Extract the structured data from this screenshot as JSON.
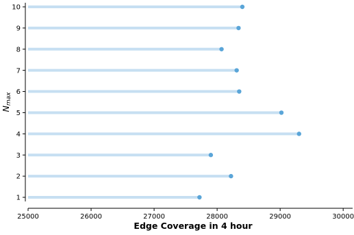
{
  "chart_data": {
    "type": "lollipop",
    "title": "",
    "xlabel": "Edge Coverage in 4 hour",
    "ylabel_main": "N",
    "ylabel_sub": "max",
    "categories": [
      "1",
      "2",
      "3",
      "4",
      "5",
      "6",
      "7",
      "8",
      "9",
      "10"
    ],
    "values": [
      27720,
      28220,
      27900,
      29300,
      29020,
      28350,
      28310,
      28070,
      28340,
      28400
    ],
    "baseline": 25000,
    "xlim": [
      25000,
      30150
    ],
    "xticks": [
      "25000",
      "26000",
      "27000",
      "28000",
      "29000",
      "30000"
    ],
    "grid": false,
    "legend": "none",
    "colors": {
      "stem": "#c6dff2",
      "marker": "#5aa5d8"
    }
  }
}
